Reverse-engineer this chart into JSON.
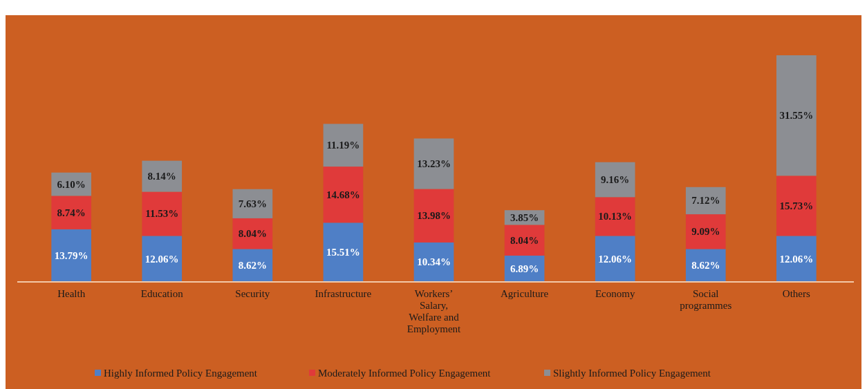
{
  "chart_data": {
    "type": "bar",
    "stacked": true,
    "legend": "bottom",
    "categories": [
      "Health",
      "Education",
      "Security",
      "Infrastructure",
      "Workers’ Salary, Welfare and Employment",
      "Agriculture",
      "Economy",
      "Social programmes",
      "Others"
    ],
    "series": [
      {
        "name": "Highly Informed Policy Engagement",
        "color": "#4f7fc6",
        "values": [
          13.79,
          12.06,
          8.62,
          15.51,
          10.34,
          6.89,
          12.06,
          8.62,
          12.06
        ],
        "value_labels": [
          "13.79%",
          "12.06%",
          "8.62%",
          "15.51%",
          "10.34%",
          "6.89%",
          "12.06%",
          "8.62%",
          "12.06%"
        ]
      },
      {
        "name": "Moderately Informed Policy Engagement",
        "color": "#e03a3a",
        "values": [
          8.74,
          11.53,
          8.04,
          14.68,
          13.98,
          8.04,
          10.13,
          9.09,
          15.73
        ],
        "value_labels": [
          "8.74%",
          "11.53%",
          "8.04%",
          "14.68%",
          "13.98%",
          "8.04%",
          "10.13%",
          "9.09%",
          "15.73%"
        ]
      },
      {
        "name": "Slightly Informed Policy Engagement",
        "color": "#8c8e93",
        "values": [
          6.1,
          8.14,
          7.63,
          11.19,
          13.23,
          3.85,
          9.16,
          7.12,
          31.55
        ],
        "value_labels": [
          "6.10%",
          "8.14%",
          "7.63%",
          "11.19%",
          "13.23%",
          "3.85%",
          "9.16%",
          "7.12%",
          "31.55%"
        ]
      }
    ]
  }
}
